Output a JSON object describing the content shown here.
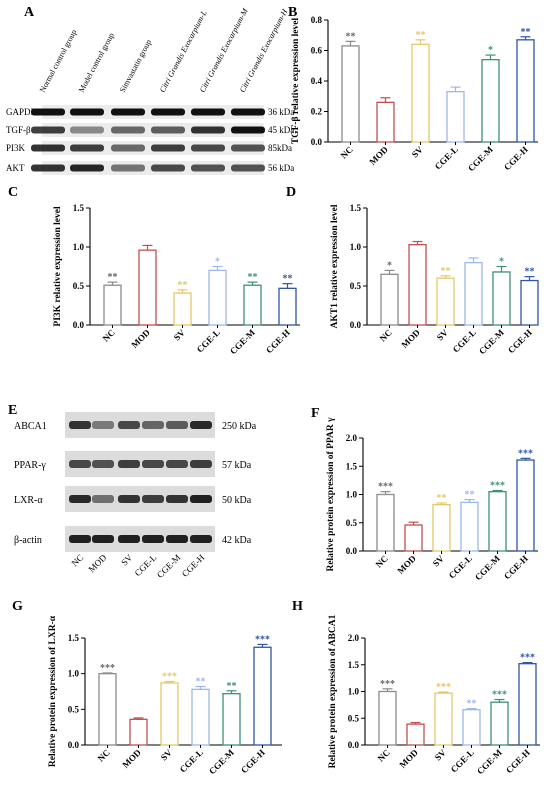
{
  "panels": {
    "A": "A",
    "B": "B",
    "C": "C",
    "D": "D",
    "E": "E",
    "F": "F",
    "G": "G",
    "H": "H"
  },
  "blot_A": {
    "groups": [
      {
        "name": "Normal control group",
        "italic": false
      },
      {
        "name": "Model control group",
        "italic": false
      },
      {
        "name": "Simvastatin group",
        "italic": false
      },
      {
        "name": "Citri Grandis Exocarpium-L",
        "italic": true
      },
      {
        "name": "Citri Grandis Exocarpium-M",
        "italic": true
      },
      {
        "name": "Citri Grandis Exocarpium-H",
        "italic": true
      }
    ],
    "rows": [
      {
        "label": "GAPDH",
        "kda": "36 kDa"
      },
      {
        "label": "TGF-β",
        "kda": "45 kDa"
      },
      {
        "label": "PI3K",
        "kda": "85kDa"
      },
      {
        "label": "AKT",
        "kda": "56 kDa"
      }
    ]
  },
  "blot_E": {
    "rows": [
      {
        "label": "ABCA1",
        "kda": "250 kDa"
      },
      {
        "label": "PPAR-γ",
        "kda": "57 kDa"
      },
      {
        "label": "LXR-α",
        "kda": "50 kDa"
      },
      {
        "label": "β-actin",
        "kda": "42 kDa"
      }
    ],
    "lanes": [
      "NC",
      "MOD",
      "SV",
      "CGE-L",
      "CGE-M",
      "CGE-H"
    ]
  },
  "chart_data": [
    {
      "panel": "B",
      "type": "bar",
      "categories": [
        "NC",
        "MOD",
        "SV",
        "CGE-L",
        "CGE-M",
        "CGE-H"
      ],
      "values": [
        0.63,
        0.26,
        0.64,
        0.33,
        0.54,
        0.67
      ],
      "errors": [
        0.03,
        0.03,
        0.03,
        0.03,
        0.03,
        0.02
      ],
      "significance": [
        "**",
        "",
        "**",
        "",
        "*",
        "**"
      ],
      "ylabel": "TGF-β relative expression level",
      "ylim": [
        0,
        0.8
      ],
      "yticks": [
        "0.0",
        "0.2",
        "0.4",
        "0.6",
        "0.8"
      ],
      "colors": [
        "#8c8c8c",
        "#c0504d",
        "#e4c86a",
        "#9db7e8",
        "#3f8f78",
        "#2f55a4"
      ]
    },
    {
      "panel": "C",
      "type": "bar",
      "categories": [
        "NC",
        "MOD",
        "SV",
        "CGE-L",
        "CGE-M",
        "CGE-H"
      ],
      "values": [
        0.51,
        0.96,
        0.41,
        0.7,
        0.51,
        0.47
      ],
      "errors": [
        0.04,
        0.06,
        0.04,
        0.05,
        0.04,
        0.06
      ],
      "significance": [
        "**",
        "",
        "**",
        "*",
        "**",
        "**"
      ],
      "ylabel": "PI3K relative expression level",
      "ylim": [
        0,
        1.5
      ],
      "yticks": [
        "0.0",
        "0.5",
        "1.0",
        "1.5"
      ],
      "colors": [
        "#8c8c8c",
        "#c0504d",
        "#e4c86a",
        "#9db7e8",
        "#3f8f78",
        "#2f55a4"
      ]
    },
    {
      "panel": "D",
      "type": "bar",
      "categories": [
        "NC",
        "MOD",
        "SV",
        "CGE-L",
        "CGE-M",
        "CGE-H"
      ],
      "values": [
        0.65,
        1.03,
        0.6,
        0.8,
        0.68,
        0.57
      ],
      "errors": [
        0.05,
        0.04,
        0.03,
        0.06,
        0.07,
        0.05
      ],
      "significance": [
        "*",
        "",
        "**",
        "",
        "*",
        "**"
      ],
      "ylabel": "AKT1 relative expression level",
      "ylim": [
        0,
        1.5
      ],
      "yticks": [
        "0.0",
        "0.5",
        "1.0",
        "1.5"
      ],
      "colors": [
        "#8c8c8c",
        "#c0504d",
        "#e4c86a",
        "#9db7e8",
        "#3f8f78",
        "#2f55a4"
      ]
    },
    {
      "panel": "F",
      "type": "bar",
      "categories": [
        "NC",
        "MOD",
        "SV",
        "CGE-L",
        "CGE-M",
        "CGE-H"
      ],
      "values": [
        1.0,
        0.46,
        0.82,
        0.86,
        1.05,
        1.61
      ],
      "errors": [
        0.05,
        0.05,
        0.03,
        0.05,
        0.02,
        0.03
      ],
      "significance": [
        "***",
        "",
        "**",
        "**",
        "***",
        "***"
      ],
      "ylabel": "Relative protein expression of PPAR γ",
      "ylim": [
        0,
        2.0
      ],
      "yticks": [
        "0.0",
        "0.5",
        "1.0",
        "1.5",
        "2.0"
      ],
      "colors": [
        "#8c8c8c",
        "#c0504d",
        "#e4c86a",
        "#9db7e8",
        "#3f8f78",
        "#2f55a4"
      ]
    },
    {
      "panel": "G",
      "type": "bar",
      "categories": [
        "NC",
        "MOD",
        "SV",
        "CGE-L",
        "CGE-M",
        "CGE-H"
      ],
      "values": [
        1.0,
        0.36,
        0.87,
        0.78,
        0.72,
        1.37
      ],
      "errors": [
        0.01,
        0.02,
        0.02,
        0.04,
        0.04,
        0.04
      ],
      "significance": [
        "***",
        "",
        "***",
        "**",
        "**",
        "***"
      ],
      "ylabel": "Relative protein expression of LXR-α",
      "ylim": [
        0,
        1.5
      ],
      "yticks": [
        "0.0",
        "0.5",
        "1.0",
        "1.5"
      ],
      "colors": [
        "#8c8c8c",
        "#c0504d",
        "#e4c86a",
        "#9db7e8",
        "#3f8f78",
        "#2f55a4"
      ]
    },
    {
      "panel": "H",
      "type": "bar",
      "categories": [
        "NC",
        "MOD",
        "SV",
        "CGE-L",
        "CGE-M",
        "CGE-H"
      ],
      "values": [
        1.0,
        0.39,
        0.97,
        0.66,
        0.8,
        1.52
      ],
      "errors": [
        0.05,
        0.03,
        0.02,
        0.02,
        0.05,
        0.02
      ],
      "significance": [
        "***",
        "",
        "***",
        "**",
        "***",
        "***"
      ],
      "ylabel": "Relative protein expression of ABCA1",
      "ylim": [
        0,
        2.0
      ],
      "yticks": [
        "0.0",
        "0.5",
        "1.0",
        "1.5",
        "2.0"
      ],
      "colors": [
        "#8c8c8c",
        "#c0504d",
        "#e4c86a",
        "#9db7e8",
        "#3f8f78",
        "#2f55a4"
      ]
    }
  ]
}
